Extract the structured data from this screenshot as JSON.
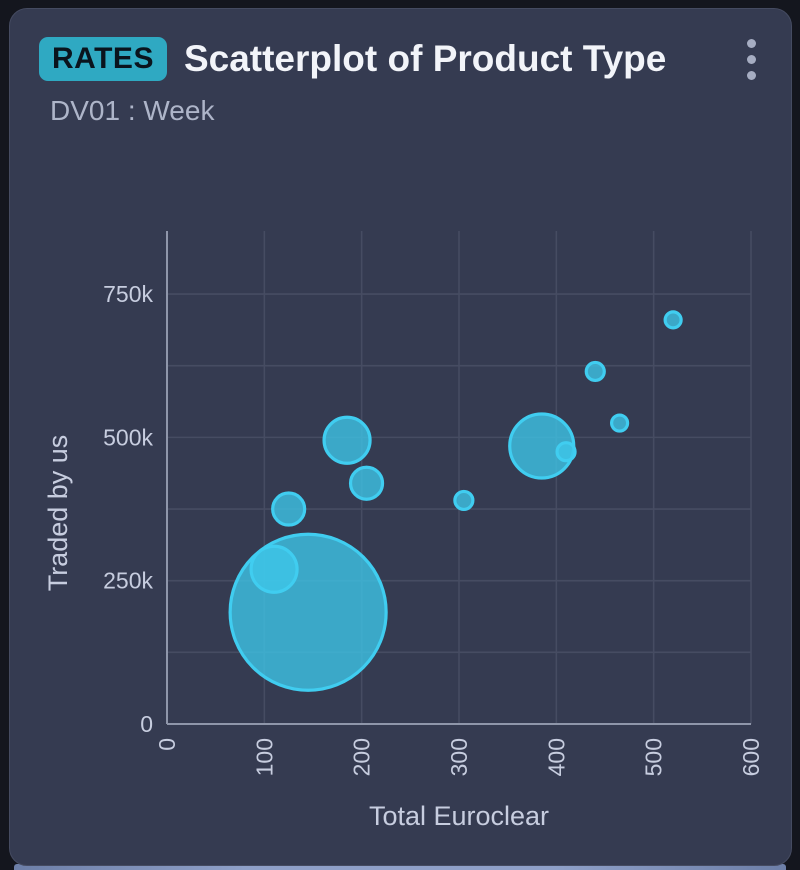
{
  "card": {
    "badge": "RATES",
    "title": "Scatterplot of Product Type",
    "subtitle": "DV01 : Week",
    "icons": {
      "menu": "kebab-vertical-dots"
    }
  },
  "colors": {
    "badge_bg": "#2fa9c2",
    "card_bg": "#353b51",
    "accent_bubble_fill": "rgba(62,198,233,0.78)",
    "accent_bubble_stroke": "#40cdf0",
    "axis_line": "#8f96aa",
    "gridline": "#464c62",
    "tick_text": "#c7cddf"
  },
  "chart_data": {
    "type": "scatter",
    "title": "",
    "xlabel": "Total Euroclear",
    "ylabel": "Traded by us",
    "xlim": [
      0,
      600
    ],
    "ylim": [
      0,
      860000
    ],
    "x_ticks": [
      0,
      100,
      200,
      300,
      400,
      500,
      600
    ],
    "x_tick_labels": [
      "0",
      "100",
      "200",
      "300",
      "400",
      "500",
      "600"
    ],
    "y_ticks": [
      0,
      250000,
      500000,
      750000
    ],
    "y_tick_labels": [
      "0",
      "250k",
      "500k",
      "750k"
    ],
    "grid": true,
    "y_grid_step": 125000,
    "legend": "none",
    "points": [
      {
        "x": 145,
        "y": 195000,
        "radius_px": 78
      },
      {
        "x": 110,
        "y": 270000,
        "radius_px": 23
      },
      {
        "x": 125,
        "y": 375000,
        "radius_px": 16
      },
      {
        "x": 185,
        "y": 495000,
        "radius_px": 23
      },
      {
        "x": 205,
        "y": 420000,
        "radius_px": 16
      },
      {
        "x": 305,
        "y": 390000,
        "radius_px": 9
      },
      {
        "x": 385,
        "y": 485000,
        "radius_px": 32
      },
      {
        "x": 410,
        "y": 475000,
        "radius_px": 9
      },
      {
        "x": 465,
        "y": 525000,
        "radius_px": 8
      },
      {
        "x": 440,
        "y": 615000,
        "radius_px": 9
      },
      {
        "x": 520,
        "y": 705000,
        "radius_px": 8
      }
    ]
  }
}
